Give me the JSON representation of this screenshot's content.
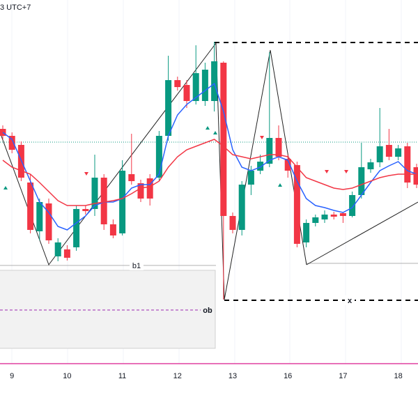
{
  "chart_data": {
    "type": "candlestick",
    "title": "3 UTC+7",
    "annotations": [
      "b1",
      "ob",
      "x"
    ],
    "categories": [
      null,
      "9",
      null,
      null,
      null,
      null,
      null,
      "10",
      null,
      null,
      null,
      null,
      null,
      "11",
      null,
      null,
      null,
      null,
      null,
      "12",
      null,
      null,
      null,
      null,
      null,
      "13",
      null,
      null,
      null,
      null,
      null,
      "16",
      null,
      null,
      null,
      null,
      null,
      "17",
      null,
      null,
      null,
      null,
      null,
      "18",
      null,
      null
    ],
    "open": [
      415,
      405,
      392,
      338,
      268,
      308,
      232,
      242,
      245,
      300,
      300,
      345,
      278,
      265,
      350,
      337,
      344,
      345,
      405,
      485,
      478,
      455,
      455,
      455,
      510,
      290,
      270,
      335,
      355,
      365,
      402,
      372,
      363,
      252,
      280,
      285,
      292,
      294,
      290,
      320,
      357,
      367,
      392,
      375,
      390,
      360
    ],
    "high": [
      420,
      410,
      397,
      350,
      315,
      315,
      258,
      248,
      305,
      305,
      378,
      350,
      285,
      370,
      408,
      342,
      350,
      412,
      520,
      490,
      485,
      535,
      510,
      540,
      512,
      295,
      340,
      362,
      378,
      525,
      420,
      378,
      368,
      285,
      292,
      298,
      296,
      296,
      325,
      395,
      372,
      445,
      415,
      392,
      395,
      365
    ],
    "low": [
      400,
      380,
      340,
      265,
      255,
      250,
      225,
      226,
      240,
      292,
      290,
      270,
      258,
      262,
      335,
      310,
      305,
      340,
      398,
      470,
      445,
      450,
      448,
      440,
      170,
      265,
      262,
      320,
      350,
      360,
      370,
      345,
      245,
      245,
      275,
      280,
      285,
      280,
      288,
      315,
      352,
      360,
      370,
      370,
      330,
      330
    ],
    "close": [
      405,
      385,
      345,
      270,
      310,
      255,
      252,
      230,
      300,
      297,
      345,
      278,
      262,
      355,
      340,
      315,
      315,
      405,
      485,
      475,
      455,
      495,
      500,
      512,
      290,
      270,
      335,
      355,
      368,
      402,
      375,
      355,
      250,
      280,
      288,
      292,
      289,
      290,
      320,
      360,
      367,
      390,
      375,
      387,
      338,
      335
    ],
    "up_color": "#089981",
    "down_color": "#f23645",
    "series": [
      {
        "color": "#2962ff",
        "values": [
          410,
          400,
          370,
          340,
          310,
          295,
          275,
          270,
          280,
          290,
          305,
          310,
          310,
          315,
          330,
          335,
          335,
          350,
          405,
          435,
          450,
          460,
          470,
          480,
          440,
          385,
          360,
          355,
          360,
          370,
          375,
          370,
          340,
          315,
          305,
          302,
          298,
          295,
          302,
          320,
          338,
          355,
          362,
          368,
          355,
          350
        ]
      },
      {
        "color": "#f23645",
        "values": [
          370,
          360,
          355,
          350,
          338,
          325,
          312,
          305,
          305,
          305,
          308,
          310,
          312,
          315,
          322,
          330,
          332,
          340,
          360,
          375,
          385,
          390,
          395,
          400,
          390,
          378,
          375,
          372,
          375,
          378,
          378,
          375,
          360,
          345,
          340,
          335,
          330,
          328,
          330,
          335,
          340,
          345,
          348,
          350,
          350,
          350
        ]
      }
    ],
    "ylim": [
      0,
      600
    ]
  }
}
